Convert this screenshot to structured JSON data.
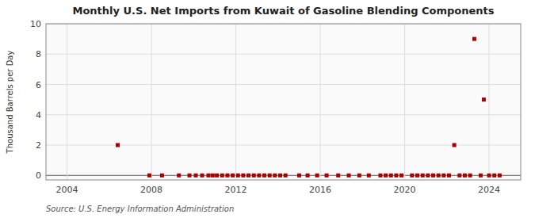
{
  "chart_data": {
    "type": "scatter",
    "title": "Monthly U.S. Net Imports from Kuwait of Gasoline Blending Components",
    "y_label": "Thousand Barrels per Day",
    "source": "Source: U.S. Energy Information Administration",
    "x": [
      2006.4,
      2007.9,
      2008.5,
      2009.3,
      2009.8,
      2010.1,
      2010.4,
      2010.7,
      2010.9,
      2011.1,
      2011.35,
      2011.6,
      2011.85,
      2012.1,
      2012.35,
      2012.6,
      2012.85,
      2013.1,
      2013.35,
      2013.6,
      2013.85,
      2014.1,
      2014.35,
      2015.0,
      2015.4,
      2015.85,
      2016.3,
      2016.85,
      2017.35,
      2017.85,
      2018.3,
      2018.85,
      2019.1,
      2019.35,
      2019.6,
      2019.85,
      2020.35,
      2020.6,
      2020.85,
      2021.1,
      2021.35,
      2021.6,
      2021.85,
      2022.1,
      2022.35,
      2022.6,
      2022.85,
      2023.1,
      2023.3,
      2023.6,
      2023.75,
      2024.0,
      2024.25,
      2024.5
    ],
    "values": [
      2.0,
      0.0,
      0.0,
      0.0,
      0.0,
      0.0,
      0.0,
      0.0,
      0.0,
      0.0,
      0.0,
      0.0,
      0.0,
      0.0,
      0.0,
      0.0,
      0.0,
      0.0,
      0.0,
      0.0,
      0.0,
      0.0,
      0.0,
      0.0,
      0.0,
      0.0,
      0.0,
      0.0,
      0.0,
      0.0,
      0.0,
      0.0,
      0.0,
      0.0,
      0.0,
      0.0,
      0.0,
      0.0,
      0.0,
      0.0,
      0.0,
      0.0,
      0.0,
      0.0,
      2.0,
      0.0,
      0.0,
      0.0,
      9.0,
      0.0,
      5.0,
      0.0,
      0.0,
      0.0
    ],
    "color": "#aa0000",
    "marker": "square",
    "xlim": [
      2003.0,
      2025.5
    ],
    "xticks": [
      2004,
      2008,
      2012,
      2016,
      2020,
      2024
    ],
    "ylim": [
      -0.3,
      10
    ],
    "yticks": [
      0,
      2,
      4,
      6,
      8,
      10
    ],
    "grid": true
  }
}
